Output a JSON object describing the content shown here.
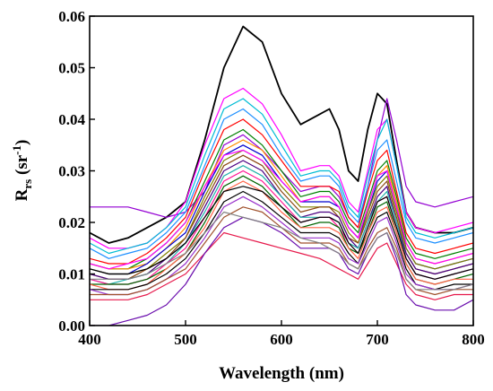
{
  "chart_data": {
    "type": "line",
    "title": "",
    "xlabel": "Wavelength (nm)",
    "ylabel_main": "R",
    "ylabel_sub": "rs",
    "ylabel_unit": " (sr",
    "ylabel_sup": "-1",
    "ylabel_close": ")",
    "xlim": [
      400,
      800
    ],
    "ylim": [
      0,
      0.06
    ],
    "xticks": [
      400,
      500,
      600,
      700,
      800
    ],
    "xtick_labels": [
      "400",
      "500",
      "600",
      "700",
      "800"
    ],
    "yticks": [
      0,
      0.01,
      0.02,
      0.03,
      0.04,
      0.05,
      0.06
    ],
    "ytick_labels": [
      "0.00",
      "0.01",
      "0.02",
      "0.03",
      "0.04",
      "0.05",
      "0.06"
    ],
    "grid": false,
    "legend": "none",
    "x": [
      400,
      420,
      440,
      460,
      480,
      500,
      520,
      540,
      560,
      580,
      600,
      620,
      640,
      650,
      660,
      670,
      680,
      690,
      700,
      710,
      720,
      730,
      740,
      760,
      780,
      800
    ],
    "series": [
      {
        "color": "#000000",
        "values": [
          0.018,
          0.016,
          0.017,
          0.019,
          0.021,
          0.024,
          0.036,
          0.05,
          0.058,
          0.055,
          0.045,
          0.039,
          0.041,
          0.042,
          0.038,
          0.03,
          0.028,
          0.038,
          0.045,
          0.043,
          0.032,
          0.022,
          0.019,
          0.018,
          0.018,
          0.019
        ]
      },
      {
        "color": "#9400d3",
        "values": [
          0.023,
          0.023,
          0.023,
          0.022,
          0.021,
          0.022,
          0.026,
          0.035,
          0.037,
          0.034,
          0.03,
          0.026,
          0.027,
          0.027,
          0.025,
          0.021,
          0.019,
          0.027,
          0.036,
          0.044,
          0.036,
          0.027,
          0.024,
          0.023,
          0.024,
          0.025
        ]
      },
      {
        "color": "#ff00ff",
        "values": [
          0.017,
          0.015,
          0.015,
          0.016,
          0.019,
          0.024,
          0.035,
          0.044,
          0.046,
          0.043,
          0.037,
          0.03,
          0.031,
          0.031,
          0.029,
          0.024,
          0.022,
          0.03,
          0.038,
          0.04,
          0.031,
          0.022,
          0.019,
          0.018,
          0.019,
          0.02
        ]
      },
      {
        "color": "#00bcd4",
        "values": [
          0.016,
          0.014,
          0.015,
          0.016,
          0.019,
          0.023,
          0.033,
          0.042,
          0.044,
          0.041,
          0.035,
          0.029,
          0.03,
          0.03,
          0.028,
          0.023,
          0.021,
          0.029,
          0.036,
          0.04,
          0.031,
          0.021,
          0.018,
          0.017,
          0.018,
          0.019
        ]
      },
      {
        "color": "#1e90ff",
        "values": [
          0.015,
          0.013,
          0.014,
          0.015,
          0.018,
          0.022,
          0.031,
          0.04,
          0.042,
          0.039,
          0.033,
          0.028,
          0.029,
          0.029,
          0.027,
          0.022,
          0.02,
          0.027,
          0.034,
          0.036,
          0.028,
          0.02,
          0.017,
          0.016,
          0.017,
          0.018
        ]
      },
      {
        "color": "#ff0000",
        "values": [
          0.013,
          0.012,
          0.012,
          0.014,
          0.017,
          0.021,
          0.03,
          0.038,
          0.04,
          0.037,
          0.032,
          0.027,
          0.027,
          0.027,
          0.026,
          0.021,
          0.019,
          0.026,
          0.032,
          0.034,
          0.026,
          0.018,
          0.015,
          0.014,
          0.015,
          0.016
        ]
      },
      {
        "color": "#008000",
        "values": [
          0.012,
          0.011,
          0.011,
          0.013,
          0.016,
          0.02,
          0.028,
          0.036,
          0.038,
          0.035,
          0.03,
          0.025,
          0.026,
          0.026,
          0.024,
          0.02,
          0.018,
          0.024,
          0.03,
          0.032,
          0.025,
          0.017,
          0.014,
          0.013,
          0.014,
          0.015
        ]
      },
      {
        "color": "#ff8c00",
        "values": [
          0.012,
          0.011,
          0.011,
          0.012,
          0.015,
          0.019,
          0.027,
          0.034,
          0.036,
          0.034,
          0.029,
          0.024,
          0.025,
          0.025,
          0.023,
          0.019,
          0.017,
          0.023,
          0.029,
          0.031,
          0.024,
          0.016,
          0.013,
          0.012,
          0.013,
          0.014
        ]
      },
      {
        "color": "#0000cd",
        "values": [
          0.011,
          0.01,
          0.01,
          0.012,
          0.015,
          0.018,
          0.026,
          0.033,
          0.035,
          0.033,
          0.028,
          0.024,
          0.024,
          0.024,
          0.023,
          0.019,
          0.017,
          0.022,
          0.028,
          0.03,
          0.023,
          0.015,
          0.012,
          0.011,
          0.012,
          0.013
        ]
      },
      {
        "color": "#808000",
        "values": [
          0.011,
          0.01,
          0.01,
          0.011,
          0.014,
          0.017,
          0.025,
          0.032,
          0.034,
          0.032,
          0.027,
          0.023,
          0.023,
          0.023,
          0.022,
          0.018,
          0.016,
          0.022,
          0.027,
          0.029,
          0.022,
          0.015,
          0.012,
          0.011,
          0.012,
          0.013
        ]
      },
      {
        "color": "#8b4513",
        "values": [
          0.01,
          0.009,
          0.009,
          0.011,
          0.013,
          0.017,
          0.024,
          0.031,
          0.033,
          0.031,
          0.026,
          0.022,
          0.023,
          0.023,
          0.021,
          0.017,
          0.016,
          0.021,
          0.026,
          0.028,
          0.021,
          0.014,
          0.011,
          0.01,
          0.011,
          0.012
        ]
      },
      {
        "color": "#4b0082",
        "values": [
          0.01,
          0.009,
          0.009,
          0.01,
          0.013,
          0.016,
          0.023,
          0.03,
          0.032,
          0.03,
          0.025,
          0.021,
          0.022,
          0.022,
          0.021,
          0.017,
          0.015,
          0.02,
          0.025,
          0.027,
          0.02,
          0.014,
          0.011,
          0.01,
          0.011,
          0.012
        ]
      },
      {
        "color": "#20b2aa",
        "values": [
          0.009,
          0.008,
          0.009,
          0.01,
          0.012,
          0.016,
          0.022,
          0.029,
          0.031,
          0.029,
          0.025,
          0.021,
          0.021,
          0.021,
          0.02,
          0.016,
          0.015,
          0.02,
          0.024,
          0.026,
          0.02,
          0.013,
          0.01,
          0.009,
          0.01,
          0.011
        ]
      },
      {
        "color": "#ff1493",
        "values": [
          0.009,
          0.008,
          0.008,
          0.009,
          0.012,
          0.015,
          0.021,
          0.028,
          0.03,
          0.028,
          0.024,
          0.02,
          0.021,
          0.021,
          0.019,
          0.016,
          0.014,
          0.019,
          0.024,
          0.025,
          0.019,
          0.013,
          0.01,
          0.009,
          0.01,
          0.011
        ]
      },
      {
        "color": "#006400",
        "values": [
          0.008,
          0.008,
          0.008,
          0.009,
          0.011,
          0.014,
          0.02,
          0.027,
          0.029,
          0.027,
          0.023,
          0.019,
          0.02,
          0.02,
          0.019,
          0.015,
          0.014,
          0.018,
          0.023,
          0.024,
          0.018,
          0.012,
          0.009,
          0.008,
          0.009,
          0.01
        ]
      },
      {
        "color": "#ff6347",
        "values": [
          0.008,
          0.007,
          0.007,
          0.008,
          0.011,
          0.014,
          0.019,
          0.026,
          0.028,
          0.026,
          0.022,
          0.019,
          0.019,
          0.019,
          0.018,
          0.015,
          0.013,
          0.018,
          0.022,
          0.023,
          0.018,
          0.012,
          0.009,
          0.008,
          0.009,
          0.009
        ]
      },
      {
        "color": "#000000",
        "values": [
          0.007,
          0.007,
          0.007,
          0.008,
          0.01,
          0.013,
          0.018,
          0.024,
          0.026,
          0.024,
          0.021,
          0.018,
          0.018,
          0.018,
          0.017,
          0.014,
          0.012,
          0.017,
          0.021,
          0.022,
          0.017,
          0.011,
          0.008,
          0.007,
          0.008,
          0.008
        ]
      },
      {
        "color": "#9932cc",
        "values": [
          0.007,
          0.006,
          0.006,
          0.007,
          0.009,
          0.012,
          0.017,
          0.023,
          0.025,
          0.023,
          0.02,
          0.017,
          0.017,
          0.017,
          0.016,
          0.013,
          0.012,
          0.016,
          0.02,
          0.021,
          0.016,
          0.01,
          0.008,
          0.007,
          0.007,
          0.008
        ]
      },
      {
        "color": "#a0522d",
        "values": [
          0.006,
          0.006,
          0.006,
          0.007,
          0.009,
          0.011,
          0.016,
          0.021,
          0.023,
          0.022,
          0.019,
          0.016,
          0.016,
          0.016,
          0.015,
          0.012,
          0.011,
          0.015,
          0.018,
          0.019,
          0.015,
          0.009,
          0.007,
          0.006,
          0.007,
          0.007
        ]
      },
      {
        "color": "#e6194b",
        "values": [
          0.005,
          0.005,
          0.005,
          0.006,
          0.008,
          0.01,
          0.014,
          0.018,
          0.017,
          0.016,
          0.015,
          0.014,
          0.013,
          0.012,
          0.011,
          0.01,
          0.009,
          0.012,
          0.015,
          0.016,
          0.012,
          0.008,
          0.006,
          0.005,
          0.006,
          0.006
        ]
      },
      {
        "color": "#6a0dad",
        "values": [
          0.0,
          0.0,
          0.001,
          0.002,
          0.004,
          0.008,
          0.014,
          0.019,
          0.021,
          0.02,
          0.018,
          0.015,
          0.015,
          0.015,
          0.014,
          0.011,
          0.01,
          0.014,
          0.017,
          0.018,
          0.013,
          0.006,
          0.004,
          0.003,
          0.003,
          0.005
        ]
      },
      {
        "color": "#808080",
        "values": [
          0.009,
          0.009,
          0.009,
          0.01,
          0.012,
          0.014,
          0.018,
          0.022,
          0.021,
          0.02,
          0.019,
          0.017,
          0.016,
          0.015,
          0.014,
          0.012,
          0.011,
          0.014,
          0.017,
          0.018,
          0.014,
          0.009,
          0.007,
          0.007,
          0.007,
          0.008
        ]
      },
      {
        "color": "#000000",
        "values": [
          0.011,
          0.01,
          0.01,
          0.011,
          0.013,
          0.016,
          0.021,
          0.026,
          0.027,
          0.026,
          0.023,
          0.02,
          0.021,
          0.021,
          0.02,
          0.016,
          0.014,
          0.019,
          0.024,
          0.025,
          0.019,
          0.013,
          0.01,
          0.009,
          0.01,
          0.011
        ]
      },
      {
        "color": "#ff00ff",
        "values": [
          0.012,
          0.011,
          0.012,
          0.013,
          0.016,
          0.02,
          0.027,
          0.033,
          0.034,
          0.032,
          0.028,
          0.024,
          0.025,
          0.025,
          0.023,
          0.019,
          0.017,
          0.023,
          0.029,
          0.03,
          0.023,
          0.016,
          0.013,
          0.012,
          0.013,
          0.014
        ]
      }
    ]
  }
}
